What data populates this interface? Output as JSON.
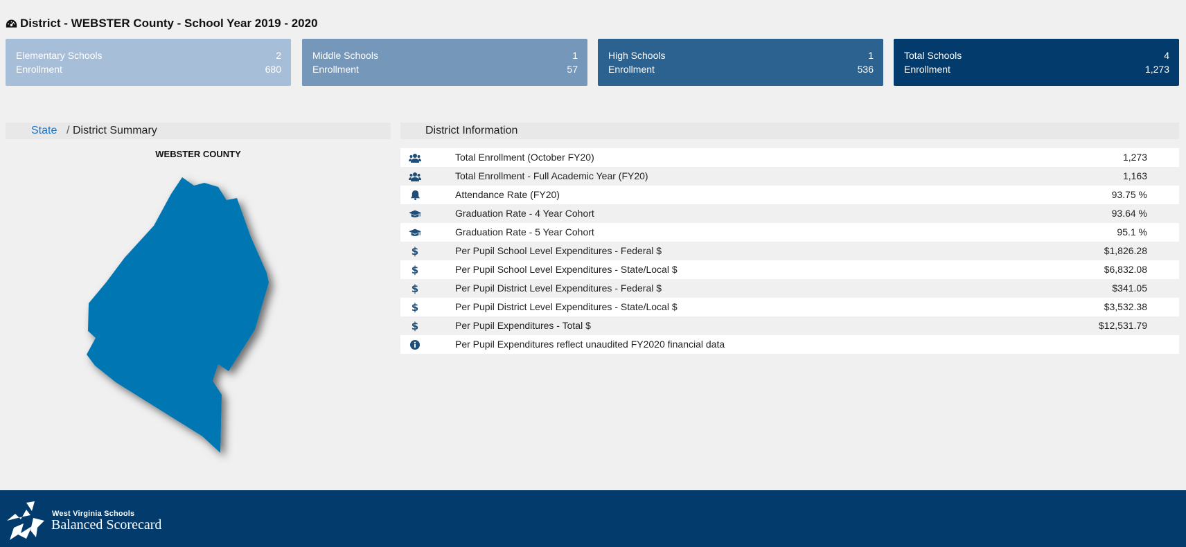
{
  "header": {
    "title": "District - WEBSTER County - School Year 2019 - 2020",
    "icon": "dashboard-icon"
  },
  "summary_cards": [
    {
      "name": "Elementary Schools",
      "count": "2",
      "enrollment_label": "Enrollment",
      "enrollment": "680",
      "color": "#a7bed9"
    },
    {
      "name": "Middle Schools",
      "count": "1",
      "enrollment_label": "Enrollment",
      "enrollment": "57",
      "color": "#7497ba"
    },
    {
      "name": "High Schools",
      "count": "1",
      "enrollment_label": "Enrollment",
      "enrollment": "536",
      "color": "#2b6290"
    },
    {
      "name": "Total Schools",
      "count": "4",
      "enrollment_label": "Enrollment",
      "enrollment": "1,273",
      "color": "#023b6c"
    }
  ],
  "breadcrumb": {
    "state": "State",
    "separator": "/",
    "current": "District Summary"
  },
  "map": {
    "county_name": "WEBSTER COUNTY",
    "fill_color": "#0277b3"
  },
  "district_info": {
    "header": "District Information",
    "rows": [
      {
        "icon": "users-icon",
        "label": "Total Enrollment (October FY20)",
        "value": "1,273"
      },
      {
        "icon": "users-icon",
        "label": "Total Enrollment - Full Academic Year (FY20)",
        "value": "1,163"
      },
      {
        "icon": "bell-icon",
        "label": "Attendance Rate (FY20)",
        "value": "93.75 %"
      },
      {
        "icon": "graduation-cap-icon",
        "label": "Graduation Rate - 4 Year Cohort",
        "value": "93.64 %"
      },
      {
        "icon": "graduation-cap-icon",
        "label": "Graduation Rate - 5 Year Cohort",
        "value": "95.1 %"
      },
      {
        "icon": "dollar-icon",
        "label": "Per Pupil School Level Expenditures - Federal $",
        "value": "$1,826.28"
      },
      {
        "icon": "dollar-icon",
        "label": "Per Pupil School Level Expenditures - State/Local $",
        "value": "$6,832.08"
      },
      {
        "icon": "dollar-icon",
        "label": "Per Pupil District Level Expenditures - Federal $",
        "value": "$341.05"
      },
      {
        "icon": "dollar-icon",
        "label": "Per Pupil District Level Expenditures - State/Local $",
        "value": "$3,532.38"
      },
      {
        "icon": "dollar-icon",
        "label": "Per Pupil Expenditures - Total $",
        "value": "$12,531.79"
      },
      {
        "icon": "info-icon",
        "label": "Per Pupil Expenditures reflect unaudited FY2020 financial data",
        "value": ""
      }
    ]
  },
  "footer": {
    "logo_line1": "West Virginia Schools",
    "logo_line2": "Balanced Scorecard",
    "background": "#023b6c"
  },
  "colors": {
    "link": "#1a74c4",
    "icon": "#1f4e79"
  }
}
